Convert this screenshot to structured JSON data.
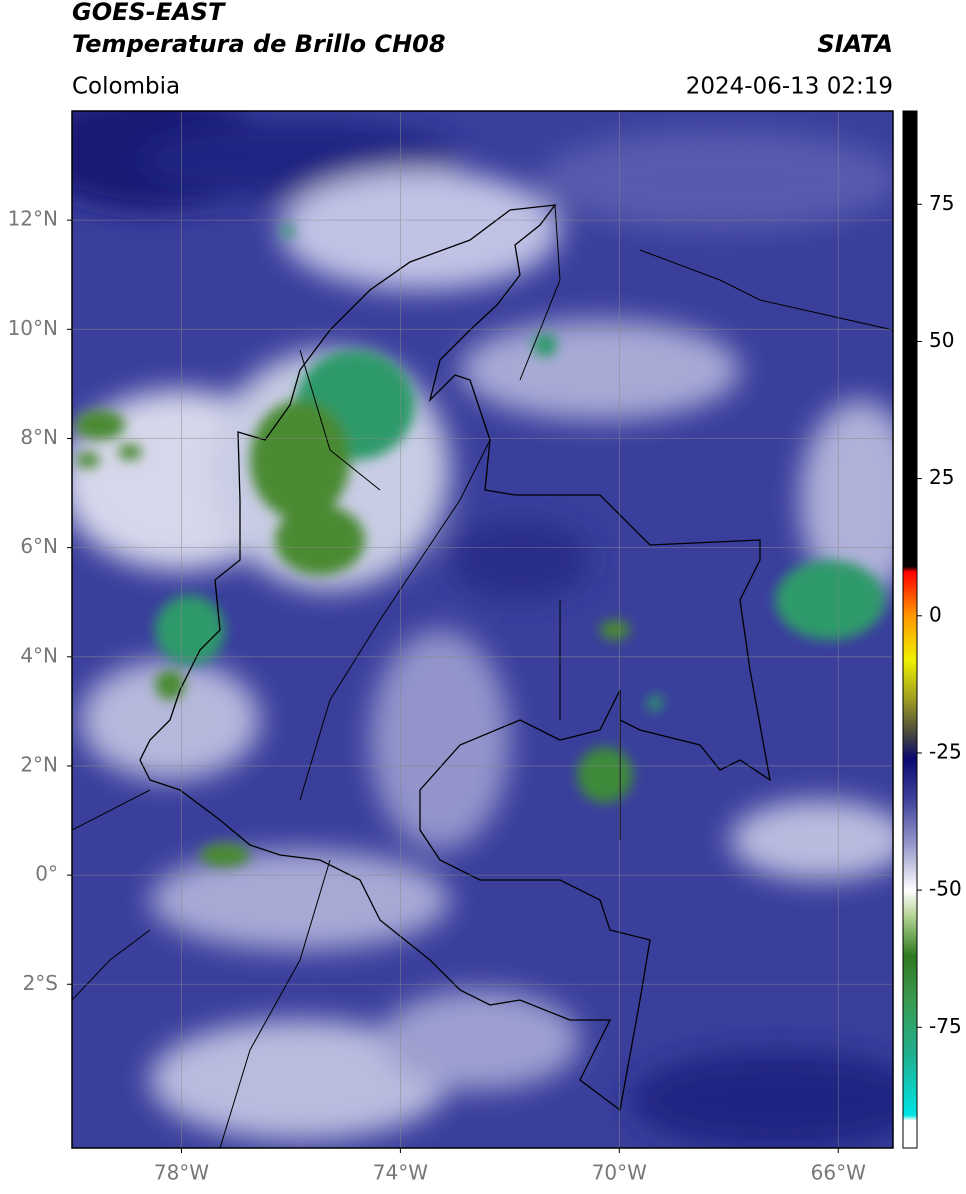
{
  "header": {
    "satellite": "GOES-EAST",
    "product": "Temperatura de Brillo CH08",
    "source": "SIATA",
    "region": "Colombia",
    "datetime": "2024-06-13 02:19"
  },
  "map": {
    "xlim": [
      -80,
      -65
    ],
    "ylim": [
      -5,
      14
    ],
    "xticks": [
      {
        "value": -78,
        "label": "78°W"
      },
      {
        "value": -74,
        "label": "74°W"
      },
      {
        "value": -70,
        "label": "70°W"
      },
      {
        "value": -66,
        "label": "66°W"
      }
    ],
    "yticks": [
      {
        "value": -2,
        "label": "2°S"
      },
      {
        "value": 0,
        "label": "0°"
      },
      {
        "value": 2,
        "label": "2°N"
      },
      {
        "value": 4,
        "label": "4°N"
      },
      {
        "value": 6,
        "label": "6°N"
      },
      {
        "value": 8,
        "label": "8°N"
      },
      {
        "value": 10,
        "label": "10°N"
      },
      {
        "value": 12,
        "label": "12°N"
      }
    ],
    "grid": true
  },
  "colorbar": {
    "clim": [
      -97,
      92
    ],
    "ticks": [
      -75,
      -50,
      -25,
      0,
      25,
      50,
      75
    ],
    "colormap": [
      {
        "value": -97,
        "color": "#ffffff"
      },
      {
        "value": -92,
        "color": "#ffffff"
      },
      {
        "value": -91,
        "color": "#00e5e5"
      },
      {
        "value": -80,
        "color": "#20b090"
      },
      {
        "value": -70,
        "color": "#3a9a50"
      },
      {
        "value": -62,
        "color": "#2e7a20"
      },
      {
        "value": -55,
        "color": "#b0d090"
      },
      {
        "value": -50,
        "color": "#ffffff"
      },
      {
        "value": -42,
        "color": "#9a9ccc"
      },
      {
        "value": -33,
        "color": "#3a3e98"
      },
      {
        "value": -26,
        "color": "#0a0a70"
      },
      {
        "value": -22,
        "color": "#404040"
      },
      {
        "value": -15,
        "color": "#a0a020"
      },
      {
        "value": -8,
        "color": "#f0f000"
      },
      {
        "value": 0,
        "color": "#ff9900"
      },
      {
        "value": 8,
        "color": "#ff0000"
      },
      {
        "value": 9,
        "color": "#000000"
      },
      {
        "value": 92,
        "color": "#000000"
      }
    ]
  }
}
